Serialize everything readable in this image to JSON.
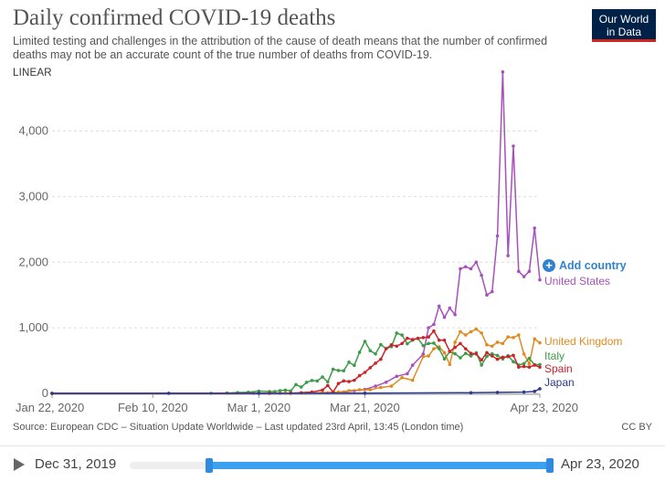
{
  "header": {
    "title": "Daily confirmed COVID-19 deaths",
    "subtitle": "Limited testing and challenges in the attribution of the cause of death means that the number of confirmed deaths may not be an accurate count of the true number of deaths from COVID-19.",
    "scale_toggle": "LINEAR",
    "logo_line1": "Our World",
    "logo_line2": "in Data"
  },
  "add_country_label": "Add country",
  "footer": {
    "source": "Source: European CDC – Situation Update Worldwide – Last updated 23rd April, 13:45 (London time)",
    "license": "CC BY"
  },
  "timeline": {
    "start_label": "Dec 31, 2019",
    "end_label": "Apr 23, 2020",
    "range_start_fraction": 0.19,
    "range_end_fraction": 1.0
  },
  "chart_data": {
    "type": "line",
    "title": "Daily confirmed COVID-19 deaths",
    "ylim": [
      0,
      4800
    ],
    "yticks": [
      0,
      1000,
      2000,
      3000,
      4000
    ],
    "ytick_labels": [
      "0",
      "1,000",
      "2,000",
      "3,000",
      "4,000"
    ],
    "xrange_dates": [
      "2020-01-22",
      "2020-04-23"
    ],
    "xtick_dates": [
      "2020-01-22",
      "2020-02-10",
      "2020-03-01",
      "2020-03-21",
      "2020-04-23"
    ],
    "xtick_labels": [
      "Jan 22, 2020",
      "Feb 10, 2020",
      "Mar 1, 2020",
      "Mar 21, 2020",
      "Apr 23, 2020"
    ],
    "grid": true,
    "legend": "right-end labels",
    "series": [
      {
        "name": "United States",
        "color": "#a652ba",
        "label_value": 1730,
        "points": [
          [
            "2020-01-22",
            0
          ],
          [
            "2020-02-29",
            1
          ],
          [
            "2020-03-05",
            2
          ],
          [
            "2020-03-10",
            4
          ],
          [
            "2020-03-14",
            8
          ],
          [
            "2020-03-17",
            20
          ],
          [
            "2020-03-19",
            40
          ],
          [
            "2020-03-21",
            60
          ],
          [
            "2020-03-23",
            110
          ],
          [
            "2020-03-25",
            170
          ],
          [
            "2020-03-27",
            260
          ],
          [
            "2020-03-29",
            300
          ],
          [
            "2020-03-30",
            430
          ],
          [
            "2020-04-01",
            600
          ],
          [
            "2020-04-02",
            1000
          ],
          [
            "2020-04-03",
            1050
          ],
          [
            "2020-04-04",
            1330
          ],
          [
            "2020-04-05",
            1160
          ],
          [
            "2020-04-06",
            1300
          ],
          [
            "2020-04-07",
            1200
          ],
          [
            "2020-04-08",
            1900
          ],
          [
            "2020-04-09",
            1930
          ],
          [
            "2020-04-10",
            1900
          ],
          [
            "2020-04-11",
            2000
          ],
          [
            "2020-04-12",
            1800
          ],
          [
            "2020-04-13",
            1500
          ],
          [
            "2020-04-14",
            1550
          ],
          [
            "2020-04-15",
            2400
          ],
          [
            "2020-04-16",
            4900
          ],
          [
            "2020-04-17",
            2100
          ],
          [
            "2020-04-18",
            3770
          ],
          [
            "2020-04-19",
            1860
          ],
          [
            "2020-04-20",
            1780
          ],
          [
            "2020-04-21",
            1860
          ],
          [
            "2020-04-22",
            2520
          ],
          [
            "2020-04-23",
            1730
          ]
        ]
      },
      {
        "name": "United Kingdom",
        "color": "#e08a1e",
        "label_value": 770,
        "points": [
          [
            "2020-01-22",
            0
          ],
          [
            "2020-03-06",
            1
          ],
          [
            "2020-03-10",
            2
          ],
          [
            "2020-03-13",
            10
          ],
          [
            "2020-03-16",
            20
          ],
          [
            "2020-03-18",
            40
          ],
          [
            "2020-03-20",
            55
          ],
          [
            "2020-03-22",
            55
          ],
          [
            "2020-03-24",
            90
          ],
          [
            "2020-03-26",
            110
          ],
          [
            "2020-03-28",
            240
          ],
          [
            "2020-03-30",
            200
          ],
          [
            "2020-04-01",
            560
          ],
          [
            "2020-04-02",
            570
          ],
          [
            "2020-04-03",
            680
          ],
          [
            "2020-04-04",
            710
          ],
          [
            "2020-04-05",
            620
          ],
          [
            "2020-04-06",
            440
          ],
          [
            "2020-04-07",
            780
          ],
          [
            "2020-04-08",
            940
          ],
          [
            "2020-04-09",
            890
          ],
          [
            "2020-04-10",
            940
          ],
          [
            "2020-04-11",
            980
          ],
          [
            "2020-04-12",
            920
          ],
          [
            "2020-04-13",
            740
          ],
          [
            "2020-04-14",
            720
          ],
          [
            "2020-04-15",
            780
          ],
          [
            "2020-04-16",
            760
          ],
          [
            "2020-04-17",
            860
          ],
          [
            "2020-04-18",
            850
          ],
          [
            "2020-04-19",
            890
          ],
          [
            "2020-04-20",
            600
          ],
          [
            "2020-04-21",
            450
          ],
          [
            "2020-04-22",
            830
          ],
          [
            "2020-04-23",
            770
          ]
        ]
      },
      {
        "name": "Italy",
        "color": "#3e9b48",
        "label_value": 440,
        "points": [
          [
            "2020-01-22",
            0
          ],
          [
            "2020-02-21",
            1
          ],
          [
            "2020-02-24",
            6
          ],
          [
            "2020-02-26",
            12
          ],
          [
            "2020-02-28",
            17
          ],
          [
            "2020-03-01",
            34
          ],
          [
            "2020-03-03",
            27
          ],
          [
            "2020-03-04",
            28
          ],
          [
            "2020-03-05",
            41
          ],
          [
            "2020-03-06",
            49
          ],
          [
            "2020-03-07",
            36
          ],
          [
            "2020-03-08",
            133
          ],
          [
            "2020-03-09",
            97
          ],
          [
            "2020-03-10",
            168
          ],
          [
            "2020-03-11",
            196
          ],
          [
            "2020-03-12",
            189
          ],
          [
            "2020-03-13",
            250
          ],
          [
            "2020-03-14",
            175
          ],
          [
            "2020-03-15",
            368
          ],
          [
            "2020-03-16",
            349
          ],
          [
            "2020-03-17",
            345
          ],
          [
            "2020-03-18",
            475
          ],
          [
            "2020-03-19",
            427
          ],
          [
            "2020-03-20",
            627
          ],
          [
            "2020-03-21",
            793
          ],
          [
            "2020-03-22",
            651
          ],
          [
            "2020-03-23",
            601
          ],
          [
            "2020-03-24",
            743
          ],
          [
            "2020-03-25",
            683
          ],
          [
            "2020-03-26",
            712
          ],
          [
            "2020-03-27",
            919
          ],
          [
            "2020-03-28",
            889
          ],
          [
            "2020-03-29",
            756
          ],
          [
            "2020-03-30",
            812
          ],
          [
            "2020-03-31",
            837
          ],
          [
            "2020-04-01",
            727
          ],
          [
            "2020-04-02",
            760
          ],
          [
            "2020-04-03",
            766
          ],
          [
            "2020-04-04",
            681
          ],
          [
            "2020-04-05",
            525
          ],
          [
            "2020-04-06",
            636
          ],
          [
            "2020-04-07",
            604
          ],
          [
            "2020-04-08",
            542
          ],
          [
            "2020-04-09",
            610
          ],
          [
            "2020-04-10",
            570
          ],
          [
            "2020-04-11",
            619
          ],
          [
            "2020-04-12",
            431
          ],
          [
            "2020-04-13",
            566
          ],
          [
            "2020-04-14",
            602
          ],
          [
            "2020-04-15",
            578
          ],
          [
            "2020-04-16",
            525
          ],
          [
            "2020-04-17",
            575
          ],
          [
            "2020-04-18",
            482
          ],
          [
            "2020-04-19",
            433
          ],
          [
            "2020-04-20",
            454
          ],
          [
            "2020-04-21",
            534
          ],
          [
            "2020-04-22",
            437
          ],
          [
            "2020-04-23",
            440
          ]
        ]
      },
      {
        "name": "Spain",
        "color": "#c8242a",
        "label_value": 400,
        "points": [
          [
            "2020-01-22",
            0
          ],
          [
            "2020-03-03",
            1
          ],
          [
            "2020-03-07",
            3
          ],
          [
            "2020-03-09",
            10
          ],
          [
            "2020-03-11",
            20
          ],
          [
            "2020-03-13",
            50
          ],
          [
            "2020-03-14",
            120
          ],
          [
            "2020-03-15",
            20
          ],
          [
            "2020-03-16",
            150
          ],
          [
            "2020-03-17",
            190
          ],
          [
            "2020-03-18",
            180
          ],
          [
            "2020-03-19",
            200
          ],
          [
            "2020-03-20",
            270
          ],
          [
            "2020-03-21",
            320
          ],
          [
            "2020-03-22",
            390
          ],
          [
            "2020-03-23",
            460
          ],
          [
            "2020-03-24",
            520
          ],
          [
            "2020-03-25",
            680
          ],
          [
            "2020-03-26",
            740
          ],
          [
            "2020-03-27",
            720
          ],
          [
            "2020-03-28",
            760
          ],
          [
            "2020-03-29",
            840
          ],
          [
            "2020-03-30",
            820
          ],
          [
            "2020-03-31",
            840
          ],
          [
            "2020-04-01",
            850
          ],
          [
            "2020-04-02",
            860
          ],
          [
            "2020-04-03",
            950
          ],
          [
            "2020-04-04",
            810
          ],
          [
            "2020-04-05",
            810
          ],
          [
            "2020-04-06",
            640
          ],
          [
            "2020-04-07",
            700
          ],
          [
            "2020-04-08",
            760
          ],
          [
            "2020-04-09",
            680
          ],
          [
            "2020-04-10",
            610
          ],
          [
            "2020-04-11",
            600
          ],
          [
            "2020-04-12",
            510
          ],
          [
            "2020-04-13",
            620
          ],
          [
            "2020-04-14",
            570
          ],
          [
            "2020-04-15",
            520
          ],
          [
            "2020-04-16",
            550
          ],
          [
            "2020-04-17",
            560
          ],
          [
            "2020-04-18",
            580
          ],
          [
            "2020-04-19",
            400
          ],
          [
            "2020-04-20",
            410
          ],
          [
            "2020-04-21",
            400
          ],
          [
            "2020-04-22",
            430
          ],
          [
            "2020-04-23",
            400
          ]
        ]
      },
      {
        "name": "Japan",
        "color": "#2c3b8e",
        "label_value": 70,
        "points": [
          [
            "2020-01-22",
            0
          ],
          [
            "2020-02-13",
            1
          ],
          [
            "2020-03-01",
            2
          ],
          [
            "2020-03-21",
            3
          ],
          [
            "2020-04-10",
            10
          ],
          [
            "2020-04-15",
            15
          ],
          [
            "2020-04-20",
            20
          ],
          [
            "2020-04-22",
            30
          ],
          [
            "2020-04-23",
            70
          ]
        ]
      }
    ]
  }
}
